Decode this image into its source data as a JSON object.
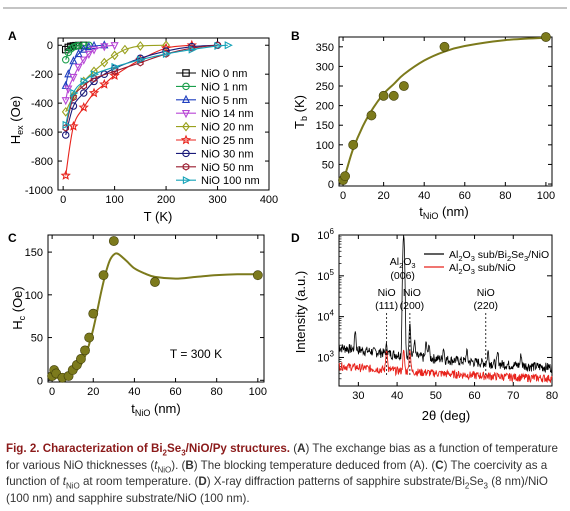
{
  "figure": {
    "caption": {
      "lead": "Fig. 2. ",
      "title_pre": "Characterization of Bi",
      "title_sub1": "2",
      "title_mid": "Se",
      "title_sub2": "3",
      "title_post": "/NiO/Py structures.",
      "a_label": "A",
      "a_text_1": " The exchange bias as a function of temperature for various NiO thicknesses (",
      "a_var": "t",
      "a_var_sub": "NiO",
      "a_text_2": "). ",
      "b_label": "B",
      "b_text": " The blocking temperature deduced from (A). ",
      "c_label": "C",
      "c_text_1": " The coercivity as a function of ",
      "c_var": "t",
      "c_var_sub": "NiO",
      "c_text_2": " at room temperature. ",
      "d_label": "D",
      "d_text_1": " X-ray diffraction patterns of sapphire substrate/Bi",
      "d_sub1": "2",
      "d_text_2": "Se",
      "d_sub2": "3",
      "d_text_3": " (8 nm)/NiO (100 nm) and sapphire substrate/NiO (100 nm)."
    }
  },
  "chart_data": [
    {
      "panel": "A",
      "type": "line",
      "xlabel": "T (K)",
      "ylabel": "H",
      "ylabel_sub": "ex",
      "ylabel_suffix": " (Oe)",
      "xlim": [
        -10,
        400
      ],
      "ylim": [
        -1000,
        50
      ],
      "xticks": [
        0,
        100,
        200,
        300,
        400
      ],
      "yticks": [
        0,
        -200,
        -400,
        -600,
        -800,
        -1000
      ],
      "legend_position": "right",
      "series": [
        {
          "name": "NiO 0 nm",
          "color": "#000000",
          "marker": "square",
          "x": [
            5,
            10,
            15,
            20,
            25,
            30,
            40
          ],
          "y": [
            -30,
            -15,
            -8,
            -5,
            -3,
            -2,
            -1
          ]
        },
        {
          "name": "NiO 1 nm",
          "color": "#1a9e4b",
          "marker": "circle",
          "x": [
            5,
            10,
            15,
            20,
            25,
            30,
            40,
            50
          ],
          "y": [
            -100,
            -50,
            -25,
            -12,
            -6,
            -3,
            -1,
            0
          ]
        },
        {
          "name": "NiO 5 nm",
          "color": "#1f3fbf",
          "marker": "triangle-up",
          "x": [
            5,
            10,
            20,
            30,
            40,
            50,
            60,
            80
          ],
          "y": [
            -280,
            -200,
            -110,
            -60,
            -30,
            -12,
            -5,
            0
          ]
        },
        {
          "name": "NiO 14 nm",
          "color": "#b847d6",
          "marker": "triangle-down",
          "x": [
            5,
            10,
            20,
            30,
            40,
            50,
            60,
            80,
            100
          ],
          "y": [
            -380,
            -300,
            -220,
            -150,
            -100,
            -60,
            -30,
            -8,
            0
          ]
        },
        {
          "name": "NiO 20 nm",
          "color": "#9aa11e",
          "marker": "diamond",
          "x": [
            5,
            20,
            40,
            60,
            80,
            100,
            120,
            150,
            200
          ],
          "y": [
            -460,
            -350,
            -250,
            -180,
            -120,
            -70,
            -30,
            -5,
            0
          ]
        },
        {
          "name": "NiO 25 nm",
          "color": "#e8231c",
          "marker": "star",
          "x": [
            5,
            20,
            40,
            60,
            80,
            100,
            150,
            200,
            250
          ],
          "y": [
            -900,
            -560,
            -430,
            -330,
            -270,
            -210,
            -100,
            -20,
            0
          ]
        },
        {
          "name": "NiO 30 nm",
          "color": "#1a1a7a",
          "marker": "circle",
          "x": [
            5,
            20,
            40,
            60,
            80,
            100,
            150,
            200,
            250,
            300
          ],
          "y": [
            -620,
            -420,
            -330,
            -250,
            -200,
            -160,
            -90,
            -40,
            -10,
            0
          ]
        },
        {
          "name": "NiO 50 nm",
          "color": "#9a1b2f",
          "marker": "hexagon",
          "x": [
            5,
            20,
            40,
            60,
            100,
            150,
            200,
            250,
            300
          ],
          "y": [
            -570,
            -360,
            -280,
            -230,
            -180,
            -120,
            -60,
            -20,
            0
          ]
        },
        {
          "name": "NiO 100 nm",
          "color": "#17a3b8",
          "marker": "triangle-right",
          "x": [
            5,
            20,
            40,
            60,
            100,
            150,
            200,
            250,
            300,
            320
          ],
          "y": [
            -550,
            -330,
            -250,
            -200,
            -150,
            -100,
            -60,
            -30,
            -5,
            0
          ]
        }
      ]
    },
    {
      "panel": "B",
      "type": "scatter",
      "xlabel": "t",
      "xlabel_sub": "NiO",
      "xlabel_suffix": " (nm)",
      "ylabel": "T",
      "ylabel_sub": "b",
      "ylabel_suffix": " (K)",
      "xlim": [
        -2,
        103
      ],
      "ylim": [
        -5,
        375
      ],
      "xticks": [
        0,
        20,
        40,
        60,
        80,
        100
      ],
      "yticks": [
        0,
        50,
        100,
        150,
        200,
        250,
        300,
        350
      ],
      "point_color": "#7c7a1c",
      "line_color": "#7c7a1c",
      "x": [
        0,
        1,
        5,
        14,
        20,
        25,
        30,
        50,
        100
      ],
      "y": [
        10,
        20,
        100,
        175,
        225,
        225,
        250,
        350,
        375
      ],
      "fit_x": [
        0,
        2,
        5,
        10,
        15,
        20,
        25,
        30,
        40,
        50,
        60,
        80,
        100
      ],
      "fit_y": [
        5,
        40,
        90,
        150,
        195,
        230,
        255,
        280,
        315,
        338,
        352,
        367,
        373
      ]
    },
    {
      "panel": "C",
      "type": "scatter",
      "xlabel": "t",
      "xlabel_sub": "NiO",
      "xlabel_suffix": " (nm)",
      "ylabel": "H",
      "ylabel_sub": "c",
      "ylabel_suffix": " (Oe)",
      "annotation": "T = 300 K",
      "xlim": [
        -2,
        103
      ],
      "ylim": [
        -2,
        170
      ],
      "xticks": [
        0,
        20,
        40,
        60,
        80,
        100
      ],
      "yticks": [
        0,
        50,
        100,
        150
      ],
      "point_color": "#7c7a1c",
      "line_color": "#7c7a1c",
      "x": [
        0,
        1,
        2,
        5,
        8,
        10,
        12,
        14,
        16,
        18,
        20,
        25,
        30,
        50,
        100
      ],
      "y": [
        5,
        12,
        8,
        3,
        5,
        12,
        18,
        25,
        35,
        50,
        78,
        123,
        163,
        115,
        123
      ],
      "fit_x": [
        0,
        2,
        4,
        6,
        8,
        10,
        12,
        14,
        16,
        18,
        20,
        22,
        24,
        26,
        28,
        30,
        32,
        36,
        40,
        45,
        50,
        60,
        70,
        80,
        90,
        100
      ],
      "fit_y": [
        3,
        3,
        3,
        4,
        5,
        8,
        12,
        18,
        28,
        42,
        60,
        82,
        105,
        125,
        140,
        147,
        148,
        140,
        131,
        125,
        121,
        119,
        121,
        123,
        124,
        124
      ]
    },
    {
      "panel": "D",
      "type": "line",
      "xlabel": "2θ (deg)",
      "ylabel": "Intensity (a.u.)",
      "yscale": "log",
      "xlim": [
        25,
        80
      ],
      "ylim": [
        200,
        1000000
      ],
      "xticks": [
        30,
        40,
        50,
        60,
        70,
        80
      ],
      "yticks_labels": [
        {
          "base": "10",
          "exp": "3"
        },
        {
          "base": "10",
          "exp": "4"
        },
        {
          "base": "10",
          "exp": "5"
        },
        {
          "base": "10",
          "exp": "6"
        }
      ],
      "legend_position": "top-right",
      "series": [
        {
          "name_pre": "Al",
          "name_sub1": "2",
          "name_mid": "O",
          "name_sub2": "3",
          "name_post": " sub/Bi",
          "name_sub3": "2",
          "name_mid2": "Se",
          "name_sub4": "3",
          "name_post2": "/NiO",
          "color": "#000000"
        },
        {
          "name_pre": "Al",
          "name_sub1": "2",
          "name_mid": "O",
          "name_sub2": "3",
          "name_post": " sub/NiO",
          "color": "#e8231c"
        }
      ],
      "annotations": [
        {
          "line1_pre": "Al",
          "line1_sub1": "2",
          "line1_mid": "O",
          "line1_sub2": "3",
          "line2": "(006)",
          "x": 41.7
        },
        {
          "line1": "NiO",
          "line2": "(111)",
          "x": 37.3
        },
        {
          "line1": "NiO",
          "line2": "(200)",
          "x": 43.3
        },
        {
          "line1": "NiO",
          "line2": "(220)",
          "x": 62.9
        }
      ],
      "peaks_black": [
        [
          29.2,
          3000
        ],
        [
          37.3,
          800
        ],
        [
          41.7,
          1000000
        ],
        [
          43.3,
          6000
        ],
        [
          44.5,
          1500
        ],
        [
          47.5,
          1400
        ],
        [
          48.2,
          1100
        ],
        [
          52.0,
          800
        ],
        [
          58.0,
          700
        ],
        [
          63.5,
          700
        ],
        [
          66.0,
          600
        ],
        [
          72.0,
          550
        ]
      ],
      "peaks_red": [
        [
          37.3,
          1050
        ],
        [
          41.7,
          1000
        ],
        [
          43.3,
          1100
        ]
      ]
    }
  ]
}
